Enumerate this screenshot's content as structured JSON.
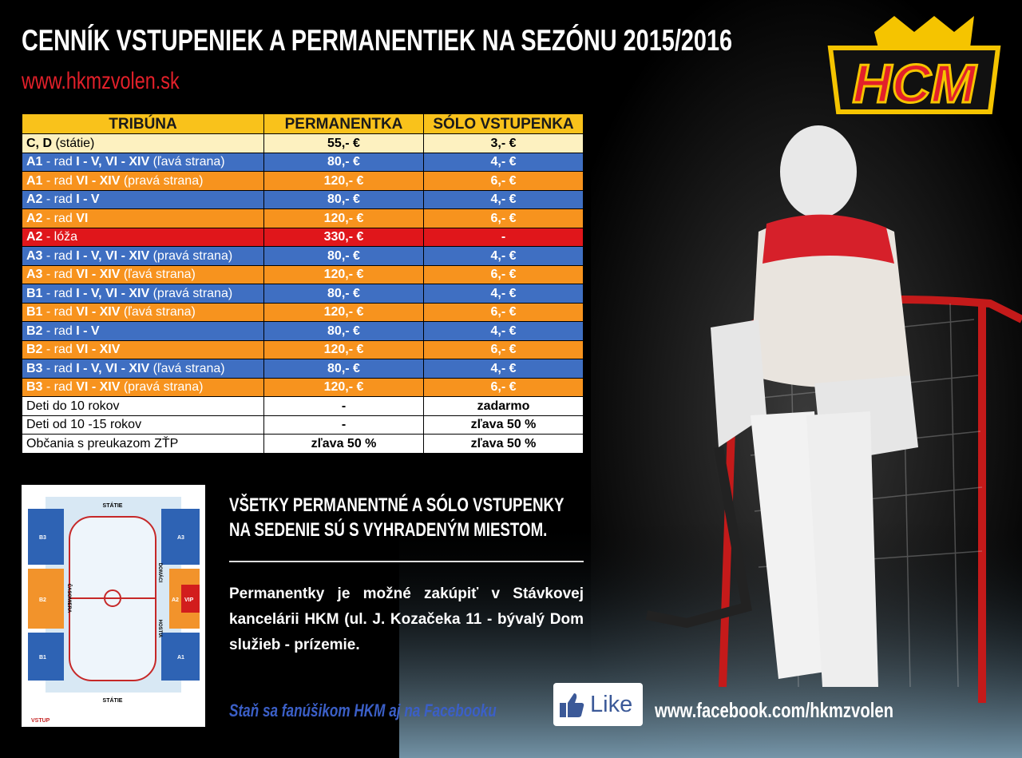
{
  "header": {
    "title": "CENNÍK VSTUPENIEK A PERMANENTIEK NA SEZÓNU 2015/2016",
    "website": "www.hkmzvolen.sk",
    "logo": "HCM"
  },
  "table": {
    "columns": [
      "TRIBÚNA",
      "PERMANENTKA",
      "SÓLO VSTUPENKA"
    ],
    "rows": [
      {
        "color": "#fdf1c0",
        "ink": "#000",
        "tribuna": [
          {
            "text": "C, D",
            "bold": true
          },
          {
            "text": " (státie)",
            "bold": false
          }
        ],
        "permanentka": "55,- €",
        "solo": "3,- €"
      },
      {
        "color": "#3f6fc2",
        "ink": "#fff",
        "tribuna": [
          {
            "text": "A1",
            "bold": true
          },
          {
            "text": " - rad ",
            "bold": false
          },
          {
            "text": "I - V, VI - XIV",
            "bold": true
          },
          {
            "text": " (ľavá strana)",
            "bold": false
          }
        ],
        "permanentka": "80,- €",
        "solo": "4,- €"
      },
      {
        "color": "#f7931e",
        "ink": "#fff",
        "tribuna": [
          {
            "text": "A1",
            "bold": true
          },
          {
            "text": " - rad ",
            "bold": false
          },
          {
            "text": "VI - XIV",
            "bold": true
          },
          {
            "text": " (pravá strana)",
            "bold": false
          }
        ],
        "permanentka": "120,- €",
        "solo": "6,- €"
      },
      {
        "color": "#3f6fc2",
        "ink": "#fff",
        "tribuna": [
          {
            "text": "A2",
            "bold": true
          },
          {
            "text": " - rad ",
            "bold": false
          },
          {
            "text": "I - V",
            "bold": true
          }
        ],
        "permanentka": "80,- €",
        "solo": "4,- €"
      },
      {
        "color": "#f7931e",
        "ink": "#fff",
        "tribuna": [
          {
            "text": "A2",
            "bold": true
          },
          {
            "text": " - rad ",
            "bold": false
          },
          {
            "text": "VI",
            "bold": true
          }
        ],
        "permanentka": "120,- €",
        "solo": "6,- €"
      },
      {
        "color": "#e0161b",
        "ink": "#fff",
        "tribuna": [
          {
            "text": "A2",
            "bold": true
          },
          {
            "text": " - lóža",
            "bold": false
          }
        ],
        "permanentka": "330,- €",
        "solo": "-"
      },
      {
        "color": "#3f6fc2",
        "ink": "#fff",
        "tribuna": [
          {
            "text": "A3",
            "bold": true
          },
          {
            "text": " - rad ",
            "bold": false
          },
          {
            "text": "I - V, VI - XIV",
            "bold": true
          },
          {
            "text": " (pravá strana)",
            "bold": false
          }
        ],
        "permanentka": "80,- €",
        "solo": "4,- €"
      },
      {
        "color": "#f7931e",
        "ink": "#fff",
        "tribuna": [
          {
            "text": "A3",
            "bold": true
          },
          {
            "text": " - rad ",
            "bold": false
          },
          {
            "text": "VI - XIV",
            "bold": true
          },
          {
            "text": " (ľavá strana)",
            "bold": false
          }
        ],
        "permanentka": "120,- €",
        "solo": "6,- €"
      },
      {
        "color": "#3f6fc2",
        "ink": "#fff",
        "tribuna": [
          {
            "text": "B1",
            "bold": true
          },
          {
            "text": " - rad ",
            "bold": false
          },
          {
            "text": "I - V, VI - XIV",
            "bold": true
          },
          {
            "text": " (pravá strana)",
            "bold": false
          }
        ],
        "permanentka": "80,- €",
        "solo": "4,- €"
      },
      {
        "color": "#f7931e",
        "ink": "#fff",
        "tribuna": [
          {
            "text": "B1",
            "bold": true
          },
          {
            "text": " - rad ",
            "bold": false
          },
          {
            "text": "VI - XIV",
            "bold": true
          },
          {
            "text": " (ľavá strana)",
            "bold": false
          }
        ],
        "permanentka": "120,- €",
        "solo": "6,- €"
      },
      {
        "color": "#3f6fc2",
        "ink": "#fff",
        "tribuna": [
          {
            "text": "B2",
            "bold": true
          },
          {
            "text": " - rad ",
            "bold": false
          },
          {
            "text": "I - V",
            "bold": true
          }
        ],
        "permanentka": "80,- €",
        "solo": "4,- €"
      },
      {
        "color": "#f7931e",
        "ink": "#fff",
        "tribuna": [
          {
            "text": "B2",
            "bold": true
          },
          {
            "text": " - rad ",
            "bold": false
          },
          {
            "text": "VI - XIV",
            "bold": true
          }
        ],
        "permanentka": "120,- €",
        "solo": "6,- €"
      },
      {
        "color": "#3f6fc2",
        "ink": "#fff",
        "tribuna": [
          {
            "text": "B3",
            "bold": true
          },
          {
            "text": " - rad ",
            "bold": false
          },
          {
            "text": "I - V, VI - XIV",
            "bold": true
          },
          {
            "text": " (ľavá strana)",
            "bold": false
          }
        ],
        "permanentka": "80,- €",
        "solo": "4,- €"
      },
      {
        "color": "#f7931e",
        "ink": "#fff",
        "tribuna": [
          {
            "text": "B3",
            "bold": true
          },
          {
            "text": " - rad ",
            "bold": false
          },
          {
            "text": "VI - XIV",
            "bold": true
          },
          {
            "text": " (pravá strana)",
            "bold": false
          }
        ],
        "permanentka": "120,- €",
        "solo": "6,- €"
      },
      {
        "color": "#ffffff",
        "ink": "#000",
        "tribuna": [
          {
            "text": "Deti do 10 rokov",
            "bold": false
          }
        ],
        "permanentka": "-",
        "solo": "zadarmo"
      },
      {
        "color": "#ffffff",
        "ink": "#000",
        "tribuna": [
          {
            "text": "Deti od 10 -15 rokov",
            "bold": false
          }
        ],
        "permanentka": "-",
        "solo": "zľava 50 %"
      },
      {
        "color": "#ffffff",
        "ink": "#000",
        "tribuna": [
          {
            "text": "Občania s preukazom ZŤP",
            "bold": false
          }
        ],
        "permanentka": "zľava 50 %",
        "solo": "zľava 50 %"
      }
    ]
  },
  "notice": {
    "headline": [
      "VŠETKY PERMANENTNÉ A SÓLO VSTUPENKY",
      "NA SEDENIE SÚ S VYHRADENÝM MIESTOM."
    ],
    "purchase": "Permanentky je možné zakúpiť v Stávkovej kancelárii HKM (ul. J. Kozačeka 11 - bývalý Dom služieb - prízemie."
  },
  "facebook": {
    "invite": "Staň sa fanúšikom HKM aj na Facebooku",
    "button": "Like",
    "url": "www.facebook.com/hkmzvolen"
  },
  "map": {
    "top": "STÁTIE",
    "bottom": "STÁTIE",
    "entrance": "VSTUP",
    "b3": "B3",
    "b2": "B2",
    "b1": "B1",
    "a3": "A3",
    "a2": "A2",
    "a1": "A1",
    "vip": "VIP",
    "timekeeper": "ČASOMIERA",
    "home": "DOMÁCI",
    "guests": "HOSTIA"
  }
}
